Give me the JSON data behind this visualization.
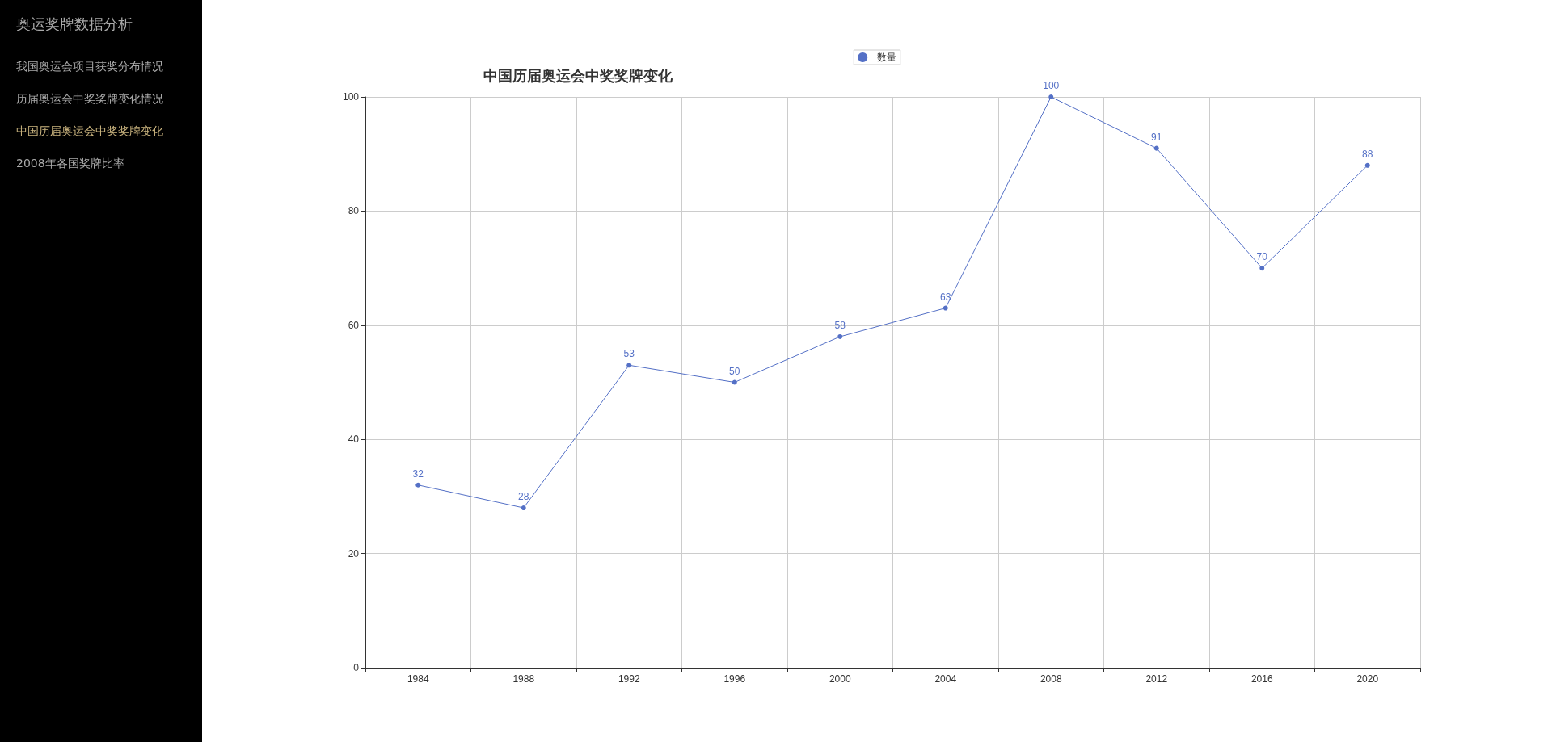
{
  "chart_data": {
    "type": "line",
    "title": "中国历届奥运会中奖奖牌变化",
    "categories": [
      "1984",
      "1988",
      "1992",
      "1996",
      "2000",
      "2004",
      "2008",
      "2012",
      "2016",
      "2020"
    ],
    "series": [
      {
        "name": "数量",
        "color": "#5470c6",
        "values": [
          32,
          28,
          53,
          50,
          58,
          63,
          100,
          91,
          70,
          88
        ]
      }
    ],
    "ylim": [
      0,
      100
    ],
    "yticks": [
      0,
      20,
      40,
      60,
      80,
      100
    ],
    "grid": true,
    "legend": "top",
    "marker": "circle",
    "data_labels": true,
    "annotations": [
      "奥运奖牌数据分析",
      "我国奥运会项目获奖分布情况",
      "历届奥运会中奖奖牌变化情况",
      "中国历届奥运会中奖奖牌变化",
      "2008年各国奖牌比率"
    ]
  }
}
